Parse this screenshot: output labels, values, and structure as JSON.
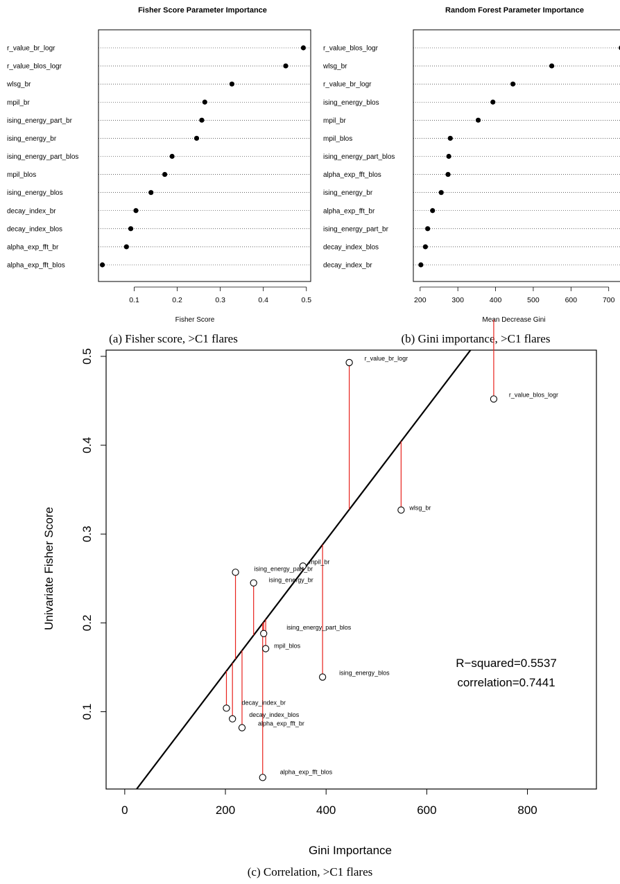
{
  "chart_data": [
    {
      "type": "scatter",
      "subtype": "dotchart",
      "title": "Fisher Score Parameter Importance",
      "xlabel": "Fisher Score",
      "ylabel": "",
      "xlim": [
        0.017,
        0.51
      ],
      "xticks": [
        0.1,
        0.2,
        0.3,
        0.4,
        0.5
      ],
      "caption": "(a) Fisher score, >C1 flares",
      "categories": [
        "r_value_br_logr",
        "r_value_blos_logr",
        "wlsg_br",
        "mpil_br",
        "ising_energy_part_br",
        "ising_energy_br",
        "ising_energy_part_blos",
        "mpil_blos",
        "ising_energy_blos",
        "decay_index_br",
        "decay_index_blos",
        "alpha_exp_fft_br",
        "alpha_exp_fft_blos"
      ],
      "values": [
        0.493,
        0.452,
        0.327,
        0.264,
        0.257,
        0.245,
        0.188,
        0.171,
        0.139,
        0.104,
        0.092,
        0.082,
        0.026
      ]
    },
    {
      "type": "scatter",
      "subtype": "dotchart",
      "title": "Random Forest Parameter Importance",
      "xlabel": "Mean Decrease Gini",
      "ylabel": "",
      "xlim": [
        182,
        752
      ],
      "xticks": [
        200,
        300,
        400,
        500,
        600,
        700
      ],
      "caption": "(b) Gini importance, >C1 flares",
      "categories": [
        "r_value_blos_logr",
        "wlsg_br",
        "r_value_br_logr",
        "ising_energy_blos",
        "mpil_br",
        "mpil_blos",
        "ising_energy_part_blos",
        "alpha_exp_fft_blos",
        "ising_energy_br",
        "alpha_exp_fft_br",
        "ising_energy_part_br",
        "decay_index_blos",
        "decay_index_br"
      ],
      "values": [
        733,
        549,
        446,
        393,
        354,
        280,
        276,
        274,
        256,
        233,
        220,
        214,
        202
      ]
    },
    {
      "type": "scatter",
      "title": "",
      "xlabel": "Gini Importance",
      "ylabel": "Univariate Fisher Score",
      "xlim": [
        -37,
        937
      ],
      "ylim": [
        0.013,
        0.507
      ],
      "xticks": [
        0,
        200,
        400,
        600,
        800
      ],
      "yticks": [
        0.1,
        0.2,
        0.3,
        0.4,
        0.5
      ],
      "caption": "(c) Correlation, >C1 flares",
      "annotation": [
        "R−squared=0.5537",
        "correlation=0.7441"
      ],
      "fit_line": {
        "slope": 0.000745,
        "intercept": -0.0047
      },
      "colors": {
        "points": "#000000",
        "fit": "#000000",
        "residuals": "#e8211c"
      },
      "points": [
        {
          "label": "r_value_br_logr",
          "x": 446,
          "y": 0.493
        },
        {
          "label": "r_value_blos_logr",
          "x": 733,
          "y": 0.452
        },
        {
          "label": "wlsg_br",
          "x": 549,
          "y": 0.327
        },
        {
          "label": "mpil_br",
          "x": 354,
          "y": 0.264
        },
        {
          "label": "ising_energy_part_br",
          "x": 220,
          "y": 0.257
        },
        {
          "label": "ising_energy_br",
          "x": 256,
          "y": 0.245
        },
        {
          "label": "ising_energy_part_blos",
          "x": 276,
          "y": 0.188
        },
        {
          "label": "mpil_blos",
          "x": 280,
          "y": 0.171
        },
        {
          "label": "ising_energy_blos",
          "x": 393,
          "y": 0.139
        },
        {
          "label": "decay_index_br",
          "x": 202,
          "y": 0.104
        },
        {
          "label": "decay_index_blos",
          "x": 214,
          "y": 0.092
        },
        {
          "label": "alpha_exp_fft_br",
          "x": 233,
          "y": 0.082
        },
        {
          "label": "alpha_exp_fft_blos",
          "x": 274,
          "y": 0.026
        }
      ]
    }
  ]
}
